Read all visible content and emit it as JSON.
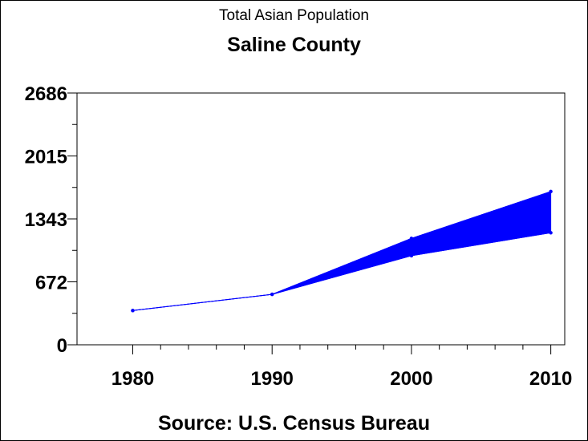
{
  "chart_data": {
    "type": "area",
    "title": "Total Asian Population",
    "subtitle": "Saline County",
    "source": "Source: U.S. Census Bureau",
    "xlabel": "",
    "ylabel": "",
    "x": [
      1980,
      1990,
      2000,
      2010
    ],
    "series": [
      {
        "values": [
          365,
          538,
          1135,
          1635
        ]
      },
      {
        "values": [
          365,
          538,
          950,
          1195
        ]
      }
    ],
    "ylim": [
      0,
      2686
    ],
    "xlim": [
      1976,
      2011
    ],
    "yticks": [
      0,
      672,
      1343,
      2015,
      2686
    ],
    "xticks": [
      1980,
      1990,
      2000,
      2010
    ],
    "color": "#0000ff",
    "grid": false
  }
}
